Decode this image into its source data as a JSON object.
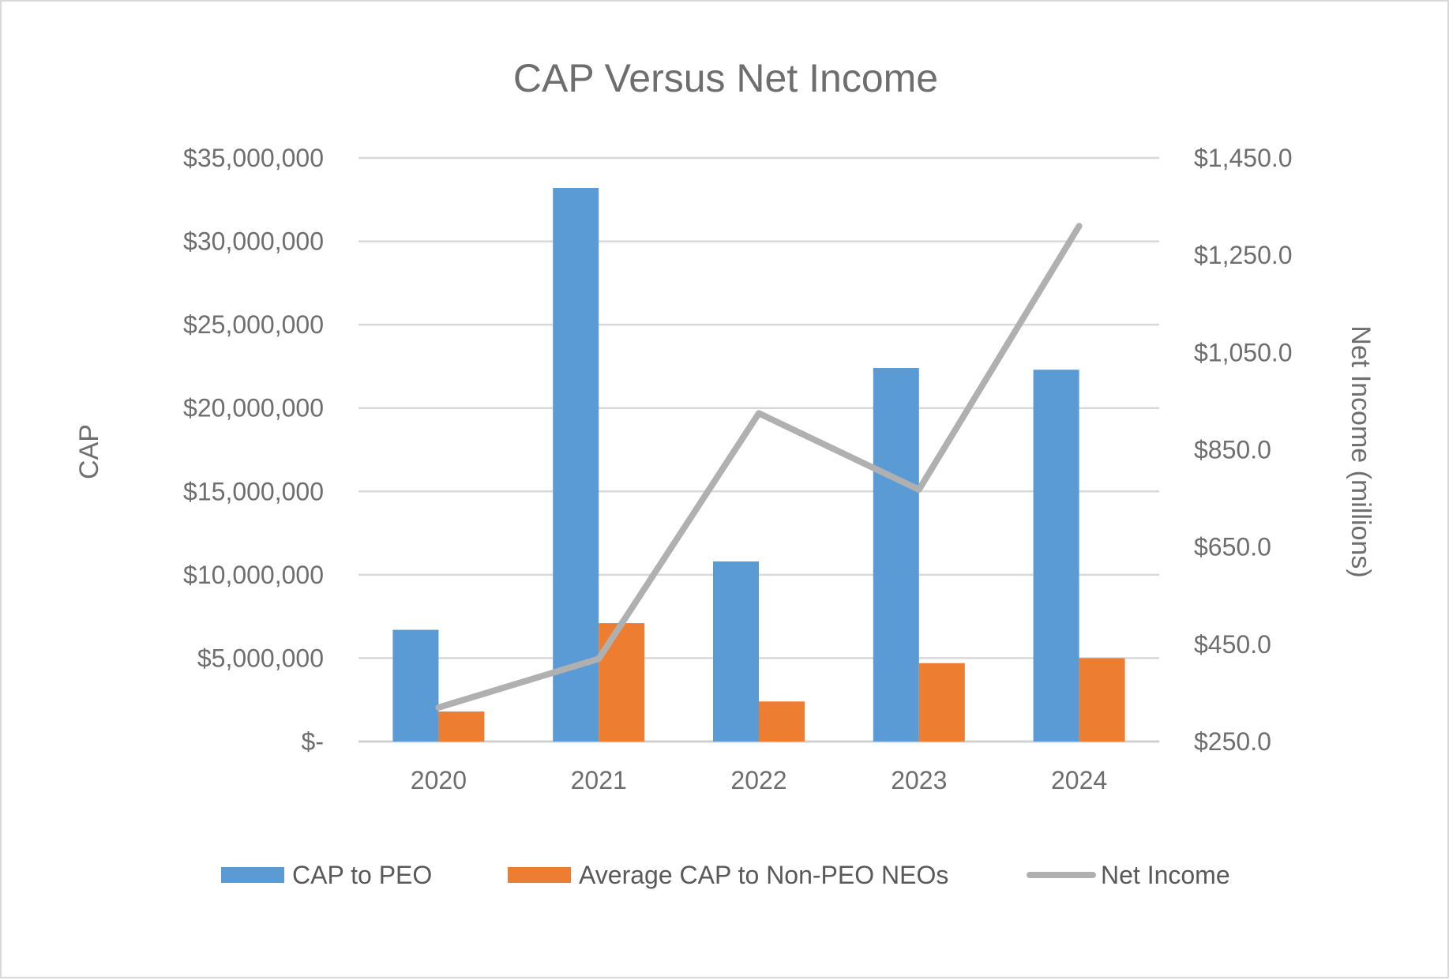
{
  "chart_data": {
    "type": "bar",
    "title": "CAP Versus Net Income",
    "categories": [
      "2020",
      "2021",
      "2022",
      "2023",
      "2024"
    ],
    "ylabel": "CAP",
    "y2label": "Net Income (millions)",
    "ylim": [
      0,
      35000000
    ],
    "y2lim": [
      250,
      1450
    ],
    "y_ticks": [
      0,
      5000000,
      10000000,
      15000000,
      20000000,
      25000000,
      30000000,
      35000000
    ],
    "y_tick_labels": [
      "$-",
      "$5,000,000",
      "$10,000,000",
      "$15,000,000",
      "$20,000,000",
      "$25,000,000",
      "$30,000,000",
      "$35,000,000"
    ],
    "y2_ticks": [
      250,
      450,
      650,
      850,
      1050,
      1250,
      1450
    ],
    "y2_tick_labels": [
      "$250.0",
      "$450.0",
      "$650.0",
      "$850.0",
      "$1,050.0",
      "$1,250.0",
      "$1,450.0"
    ],
    "grid": true,
    "legend_position": "bottom",
    "series": [
      {
        "name": "CAP to PEO",
        "kind": "bar",
        "axis": "left",
        "color": "#5b9bd5",
        "values": [
          6700000,
          33200000,
          10800000,
          22400000,
          22300000
        ]
      },
      {
        "name": "Average CAP to Non-PEO NEOs",
        "kind": "bar",
        "axis": "left",
        "color": "#ed7d31",
        "values": [
          1800000,
          7100000,
          2400000,
          4700000,
          5000000
        ]
      },
      {
        "name": "Net Income",
        "kind": "line",
        "axis": "right",
        "color": "#b0b0b0",
        "values": [
          320,
          420,
          925,
          768,
          1310
        ]
      }
    ]
  }
}
